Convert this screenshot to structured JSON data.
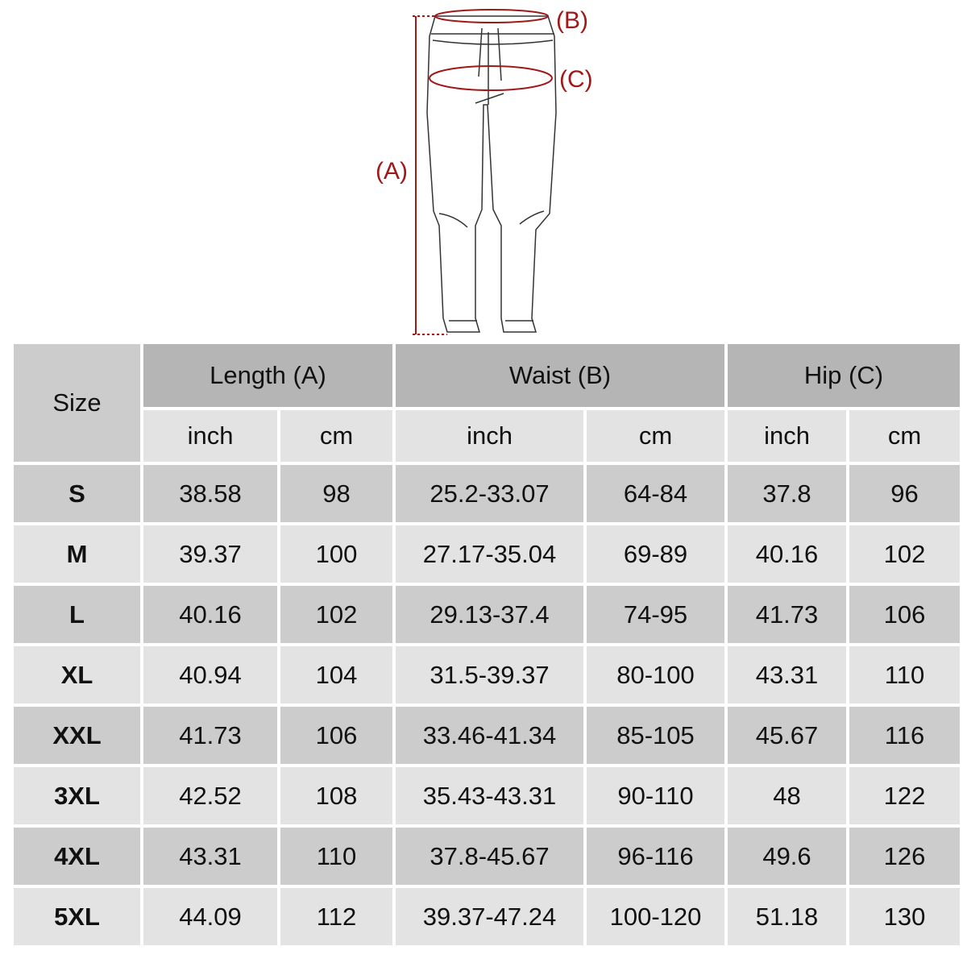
{
  "diagram": {
    "labels": {
      "a": "(A)",
      "b": "(B)",
      "c": "(C)"
    },
    "accent_color": "#a01818"
  },
  "table": {
    "size_header": "Size",
    "groups": [
      "Length (A)",
      "Waist (B)",
      "Hip (C)"
    ],
    "units": [
      "inch",
      "cm",
      "inch",
      "cm",
      "inch",
      "cm"
    ],
    "rows": [
      [
        "S",
        "38.58",
        "98",
        "25.2-33.07",
        "64-84",
        "37.8",
        "96"
      ],
      [
        "M",
        "39.37",
        "100",
        "27.17-35.04",
        "69-89",
        "40.16",
        "102"
      ],
      [
        "L",
        "40.16",
        "102",
        "29.13-37.4",
        "74-95",
        "41.73",
        "106"
      ],
      [
        "XL",
        "40.94",
        "104",
        "31.5-39.37",
        "80-100",
        "43.31",
        "110"
      ],
      [
        "XXL",
        "41.73",
        "106",
        "33.46-41.34",
        "85-105",
        "45.67",
        "116"
      ],
      [
        "3XL",
        "42.52",
        "108",
        "35.43-43.31",
        "90-110",
        "48",
        "122"
      ],
      [
        "4XL",
        "43.31",
        "110",
        "37.8-45.67",
        "96-116",
        "49.6",
        "126"
      ],
      [
        "5XL",
        "44.09",
        "112",
        "39.37-47.24",
        "100-120",
        "51.18",
        "130"
      ]
    ],
    "colors": {
      "header": "#b5b5b5",
      "dark_row": "#cccccc",
      "light_row": "#e3e3e3"
    }
  }
}
